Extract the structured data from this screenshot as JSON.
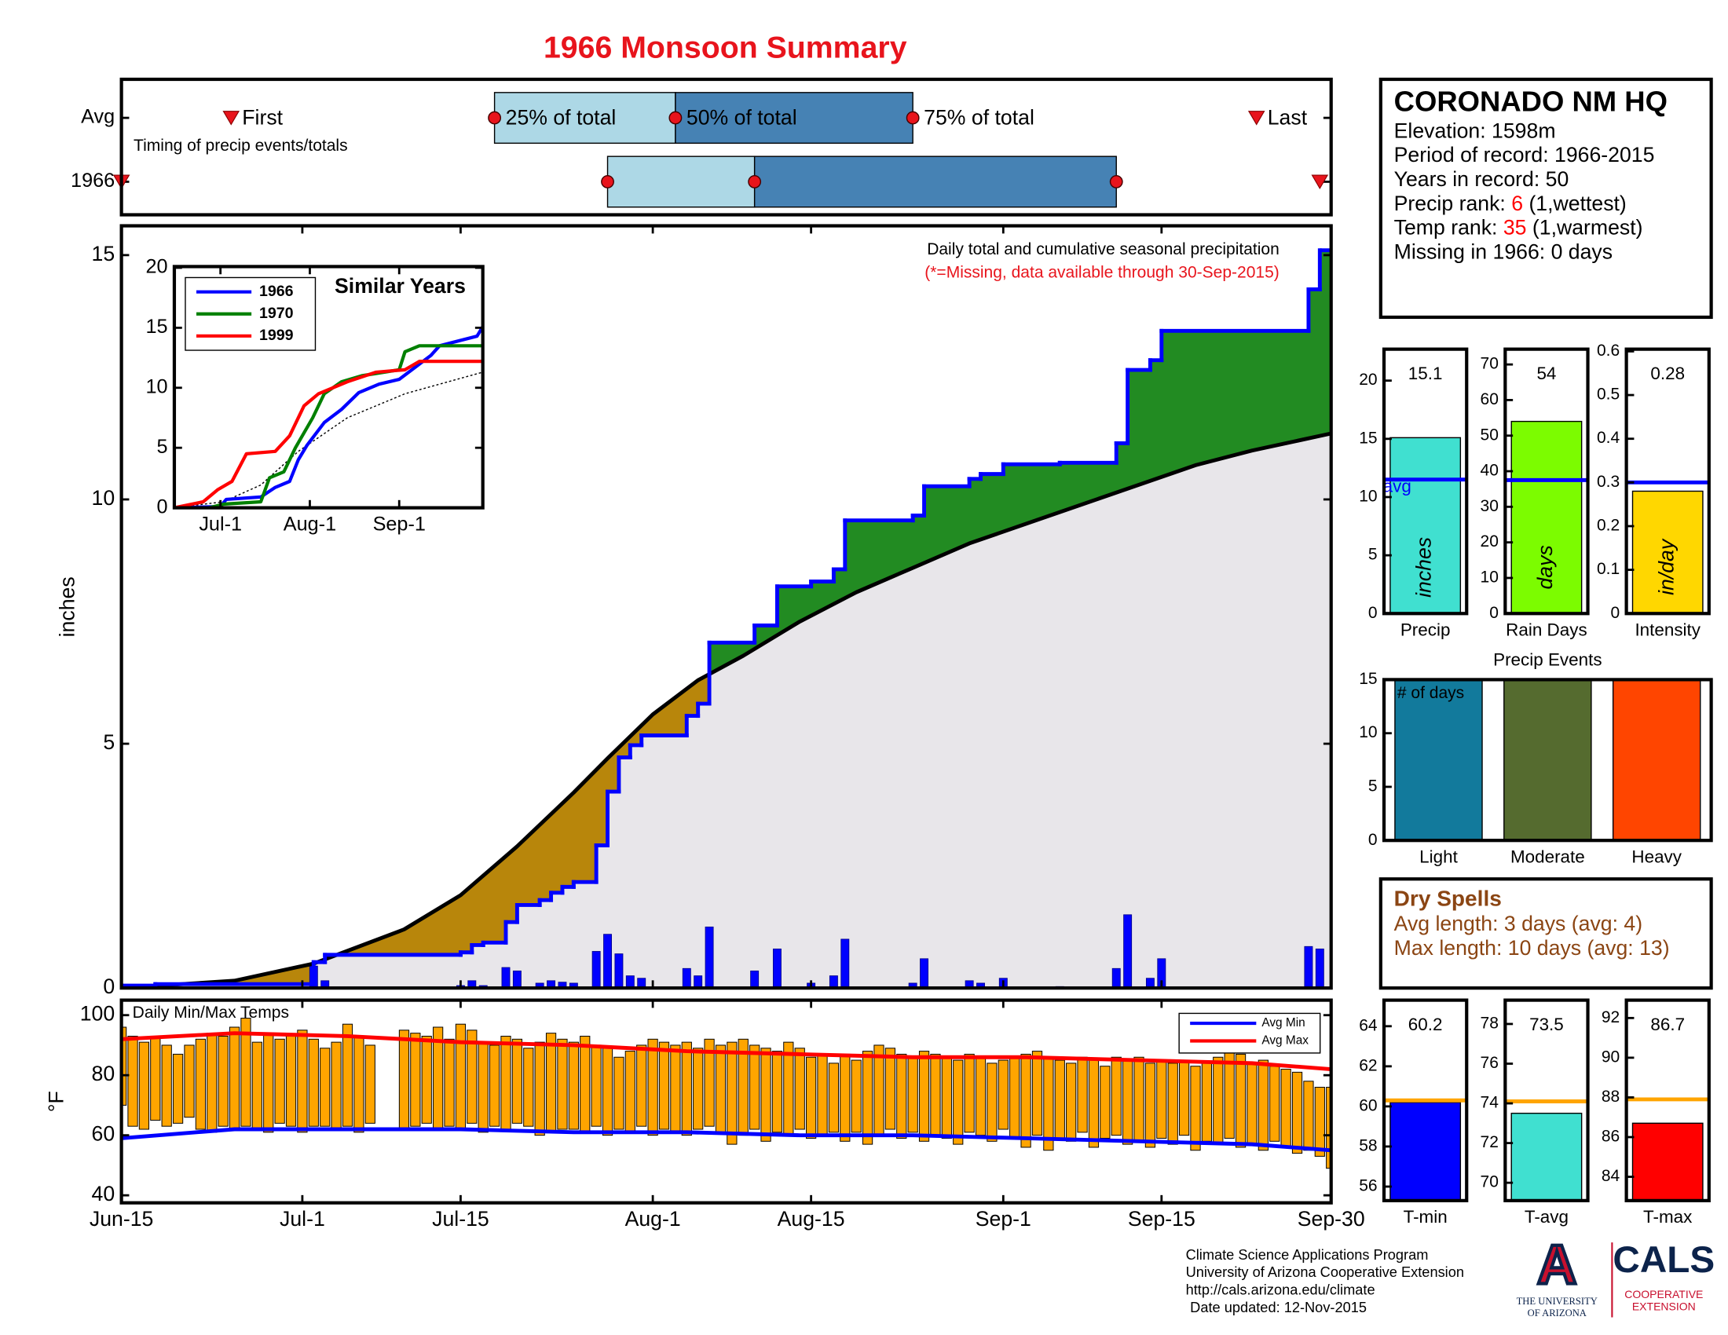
{
  "title": "1966 Monsoon Summary",
  "station": {
    "name": "CORONADO NM HQ",
    "lines": [
      "Elevation: 1598m",
      "Period of record: 1966-2015",
      "Years in record: 50"
    ],
    "ranks": [
      {
        "label": "Precip rank:",
        "value": 6,
        "note": "(1,wettest)"
      },
      {
        "label": "Temp rank:",
        "value": 35,
        "note": "(1,warmest)"
      }
    ],
    "missing": "Missing in 1966: 0 days"
  },
  "dry_spells": {
    "title": "Dry Spells",
    "lines": [
      "Avg length: 3 days (avg: 4)",
      "Max length: 10 days (avg: 13)"
    ]
  },
  "footer": {
    "lines": [
      "Climate Science Applications Program",
      "University of Arizona Cooperative Extension",
      "http://cals.arizona.edu/climate",
      "Date updated: 12-Nov-2015"
    ]
  },
  "logos": {
    "university": {
      "mark": "A",
      "lines": [
        "THE UNIVERSITY",
        "OF ARIZONA"
      ]
    },
    "cals": {
      "name": "CALS",
      "lines": [
        "COOPERATIVE",
        "EXTENSION"
      ]
    }
  },
  "chart_data": [
    {
      "type": "timeline",
      "note": "Timing of precip events/totals",
      "xlim": [
        0,
        107
      ],
      "markers": [
        "First",
        "25% of total",
        "50% of total",
        "75% of total",
        "Last"
      ],
      "colors": [
        "#add8e6",
        "#4682b4"
      ],
      "series": [
        {
          "name": "Avg",
          "values": [
            9.7,
            33,
            49,
            70,
            100.4
          ]
        },
        {
          "name": "1966",
          "values": [
            0,
            43,
            56,
            88,
            106
          ]
        }
      ]
    },
    {
      "type": "area",
      "annotation": "Daily total and cumulative seasonal precipitation",
      "note": "(*=Missing, data available through 30-Sep-2015)",
      "ylabel": "inches",
      "xlim": [
        0,
        107
      ],
      "ylim": [
        0,
        15.6
      ],
      "yticks": [
        0,
        5,
        10,
        15
      ],
      "line_color": "#0000ff",
      "fill_colors": {
        "above": "#228b22",
        "below": "#b8860b",
        "base": "#e8e6ea"
      },
      "daily": {
        "color": "#0000ff",
        "x": [
          0,
          3,
          17,
          18,
          30,
          31,
          32,
          34,
          35,
          37,
          38,
          39,
          40,
          42,
          43,
          44,
          45,
          46,
          50,
          51,
          52,
          56,
          58,
          61,
          63,
          64,
          70,
          71,
          75,
          76,
          78,
          83,
          88,
          89,
          91,
          92,
          105,
          106
        ],
        "values": [
          0.05,
          0.03,
          0.45,
          0.15,
          0.05,
          0.15,
          0.05,
          0.42,
          0.35,
          0.1,
          0.15,
          0.12,
          0.1,
          0.75,
          1.1,
          0.7,
          0.25,
          0.2,
          0.4,
          0.25,
          1.25,
          0.35,
          0.8,
          0.1,
          0.25,
          1.0,
          0.1,
          0.6,
          0.15,
          0.1,
          0.2,
          0.03,
          0.4,
          1.5,
          0.2,
          0.6,
          0.85,
          0.8
        ]
      },
      "average": {
        "color": "#000000",
        "x": [
          0,
          10,
          17,
          25,
          30,
          35,
          40,
          43,
          47,
          51,
          55,
          60,
          65,
          70,
          75,
          80,
          85,
          90,
          95,
          100,
          107
        ],
        "values": [
          0,
          0.15,
          0.5,
          1.2,
          1.9,
          2.9,
          4.0,
          4.7,
          5.6,
          6.3,
          6.8,
          7.5,
          8.1,
          8.6,
          9.1,
          9.5,
          9.9,
          10.3,
          10.7,
          11.0,
          11.35
        ]
      }
    },
    {
      "type": "range",
      "annotation": "Daily Min/Max Temps",
      "ylabel": "°F",
      "color": "#ffa500",
      "xlim": [
        0,
        107
      ],
      "ylim": [
        37.5,
        105
      ],
      "yticks": [
        40,
        60,
        80,
        100
      ],
      "xticks": [
        {
          "value": 0,
          "label": "Jun-15"
        },
        {
          "value": 16,
          "label": "Jul-1"
        },
        {
          "value": 30,
          "label": "Jul-15"
        },
        {
          "value": 47,
          "label": "Aug-1"
        },
        {
          "value": 61,
          "label": "Aug-15"
        },
        {
          "value": 78,
          "label": "Sep-1"
        },
        {
          "value": 92,
          "label": "Sep-15"
        },
        {
          "value": 107,
          "label": "Sep-30"
        }
      ],
      "x": [
        0,
        1,
        2,
        3,
        4,
        5,
        6,
        7,
        8,
        9,
        10,
        11,
        12,
        13,
        14,
        15,
        16,
        17,
        18,
        19,
        20,
        21,
        22,
        23,
        24,
        25,
        26,
        27,
        28,
        29,
        30,
        31,
        32,
        33,
        34,
        35,
        36,
        37,
        38,
        39,
        40,
        41,
        42,
        43,
        44,
        45,
        46,
        47,
        48,
        49,
        50,
        51,
        52,
        53,
        54,
        55,
        56,
        57,
        58,
        59,
        60,
        61,
        62,
        63,
        64,
        65,
        66,
        67,
        68,
        69,
        70,
        71,
        72,
        73,
        74,
        75,
        76,
        77,
        78,
        79,
        80,
        81,
        82,
        83,
        84,
        85,
        86,
        87,
        88,
        89,
        90,
        91,
        92,
        93,
        94,
        95,
        96,
        97,
        98,
        99,
        100,
        101,
        102,
        103,
        104,
        105,
        106,
        107
      ],
      "max": [
        96,
        93,
        91,
        93,
        90,
        87,
        90,
        92,
        94,
        93,
        96,
        99,
        91,
        94,
        92,
        93,
        95,
        92,
        89,
        91,
        97,
        93,
        90,
        null,
        null,
        95,
        94,
        93,
        96,
        92,
        97,
        95,
        91,
        90,
        93,
        92,
        89,
        91,
        94,
        92,
        91,
        93,
        90,
        89,
        86,
        88,
        90,
        92,
        91,
        90,
        91,
        89,
        92,
        90,
        91,
        92,
        90,
        89,
        88,
        91,
        89,
        86,
        87,
        84,
        87,
        85,
        88,
        90,
        89,
        87,
        86,
        88,
        87,
        86,
        85,
        87,
        86,
        84,
        85,
        86,
        87,
        88,
        86,
        85,
        84,
        86,
        85,
        83,
        86,
        85,
        86,
        84,
        85,
        84,
        85,
        83,
        84,
        86,
        88,
        87,
        84,
        85,
        83,
        82,
        81,
        78,
        76,
        76
      ],
      "min": [
        70,
        63,
        62,
        65,
        63,
        64,
        66,
        62,
        61,
        63,
        62,
        63,
        62,
        61,
        64,
        63,
        61,
        63,
        63,
        62,
        63,
        61,
        64,
        null,
        null,
        62,
        63,
        64,
        62,
        63,
        62,
        64,
        61,
        63,
        62,
        64,
        63,
        60,
        61,
        62,
        62,
        61,
        63,
        60,
        62,
        61,
        63,
        60,
        62,
        61,
        60,
        62,
        63,
        61,
        57,
        60,
        62,
        58,
        61,
        60,
        62,
        59,
        60,
        61,
        58,
        61,
        57,
        60,
        62,
        59,
        61,
        58,
        60,
        59,
        57,
        61,
        60,
        58,
        62,
        59,
        56,
        60,
        55,
        59,
        58,
        61,
        56,
        59,
        60,
        57,
        58,
        56,
        59,
        57,
        60,
        55,
        58,
        57,
        59,
        56,
        57,
        55,
        58,
        56,
        54,
        55,
        53,
        49
      ],
      "legend": "upper right",
      "lines": [
        {
          "name": "Avg Min",
          "color": "#0000ff",
          "x": [
            0,
            10,
            20,
            30,
            40,
            50,
            60,
            70,
            80,
            90,
            100,
            107
          ],
          "values": [
            59,
            62,
            62,
            62,
            61,
            61,
            60,
            60,
            59,
            58,
            57,
            55
          ]
        },
        {
          "name": "Avg Max",
          "color": "#ff0000",
          "x": [
            0,
            10,
            20,
            30,
            40,
            50,
            60,
            70,
            80,
            90,
            100,
            107
          ],
          "values": [
            92,
            94,
            93,
            91,
            90,
            88,
            87,
            86,
            86,
            85,
            84,
            82
          ]
        }
      ]
    },
    {
      "type": "line",
      "title": "Similar Years",
      "legend": "upper left",
      "xlim": [
        0,
        107
      ],
      "ylim": [
        0,
        20.1
      ],
      "yticks": [
        0,
        5,
        10,
        15,
        20
      ],
      "xticks": [
        {
          "value": 16,
          "label": "Jul-1"
        },
        {
          "value": 47,
          "label": "Aug-1"
        },
        {
          "value": 78,
          "label": "Sep-1"
        }
      ],
      "average": {
        "color": "#000000",
        "x": [
          0,
          17,
          30,
          43,
          60,
          80,
          107
        ],
        "values": [
          0,
          0.5,
          1.9,
          4.7,
          7.5,
          9.5,
          11.3
        ]
      },
      "series": [
        {
          "name": "1966",
          "color": "#0000ff",
          "x": [
            0,
            16,
            18,
            30,
            35,
            40,
            43,
            46,
            52,
            58,
            64,
            71,
            78,
            89,
            92,
            105,
            107
          ],
          "values": [
            0,
            0.1,
            0.7,
            0.9,
            1.7,
            2.2,
            4.0,
            5.2,
            7.1,
            8.2,
            9.6,
            10.3,
            10.7,
            12.7,
            13.5,
            14.3,
            15.1
          ]
        },
        {
          "name": "1970",
          "color": "#008000",
          "x": [
            0,
            12,
            17,
            30,
            33,
            38,
            42,
            48,
            52,
            58,
            65,
            78,
            80,
            85,
            107
          ],
          "values": [
            0,
            0,
            0.3,
            0.5,
            2.5,
            3.0,
            5.0,
            7.5,
            9.5,
            10.5,
            11.0,
            11.5,
            13.0,
            13.5,
            13.5
          ]
        },
        {
          "name": "1999",
          "color": "#ff0000",
          "x": [
            0,
            10,
            15,
            20,
            25,
            35,
            40,
            45,
            50,
            60,
            70,
            80,
            85,
            107
          ],
          "values": [
            0,
            0.5,
            1.5,
            2.2,
            4.5,
            4.7,
            6.0,
            8.5,
            9.5,
            10.5,
            11.3,
            11.5,
            12.2,
            12.2
          ]
        }
      ]
    },
    {
      "type": "bar",
      "categories": [
        "Precip"
      ],
      "values": [
        15.1
      ],
      "data_labels": true,
      "ylabel": "inches",
      "color": "#40e0d0",
      "avg": 11.5,
      "avg_label": "avg",
      "avg_color": "#0000ff",
      "ylim": [
        0,
        22.7
      ],
      "yticks": [
        0,
        5,
        10,
        15,
        20
      ]
    },
    {
      "type": "bar",
      "categories": [
        "Rain Days"
      ],
      "values": [
        54
      ],
      "data_labels": true,
      "ylabel": "days",
      "color": "#7cfc00",
      "avg": 37.5,
      "avg_color": "#0000ff",
      "ylim": [
        0,
        74.3
      ],
      "yticks": [
        0,
        10,
        20,
        30,
        40,
        50,
        60,
        70
      ]
    },
    {
      "type": "bar",
      "categories": [
        "Intensity"
      ],
      "values": [
        0.28
      ],
      "data_labels": true,
      "ylabel": "in/day",
      "color": "#ffd700",
      "avg": 0.3,
      "avg_color": "#0000ff",
      "ylim": [
        0,
        0.605
      ],
      "yticks": [
        0,
        0.1,
        0.2,
        0.3,
        0.4,
        0.5,
        0.6
      ]
    },
    {
      "type": "bar",
      "title": "Precip Events",
      "note": "# of days",
      "categories": [
        "Light",
        "Moderate",
        "Heavy"
      ],
      "values": [
        15,
        15,
        15
      ],
      "colors": [
        "#127a9c",
        "#556b2f",
        "#ff4500"
      ],
      "ylim": [
        0,
        15
      ],
      "yticks": [
        0,
        5,
        10,
        15
      ]
    },
    {
      "type": "bar",
      "categories": [
        "T-min"
      ],
      "values": [
        60.2
      ],
      "data_labels": true,
      "color": "#0000ff",
      "avg": 60.3,
      "avg_color": "#ffa500",
      "ylim": [
        55.3,
        65.3
      ],
      "yticks": [
        56,
        58,
        60,
        62,
        64
      ]
    },
    {
      "type": "bar",
      "categories": [
        "T-avg"
      ],
      "values": [
        73.5
      ],
      "data_labels": true,
      "color": "#40e0d0",
      "avg": 74.1,
      "avg_color": "#ffa500",
      "ylim": [
        69.1,
        79.2
      ],
      "yticks": [
        70,
        72,
        74,
        76,
        78
      ]
    },
    {
      "type": "bar",
      "categories": [
        "T-max"
      ],
      "values": [
        86.7
      ],
      "data_labels": true,
      "color": "#ff0000",
      "avg": 87.9,
      "avg_color": "#ffa500",
      "ylim": [
        82.8,
        92.9
      ],
      "yticks": [
        84,
        86,
        88,
        90,
        92
      ]
    }
  ]
}
